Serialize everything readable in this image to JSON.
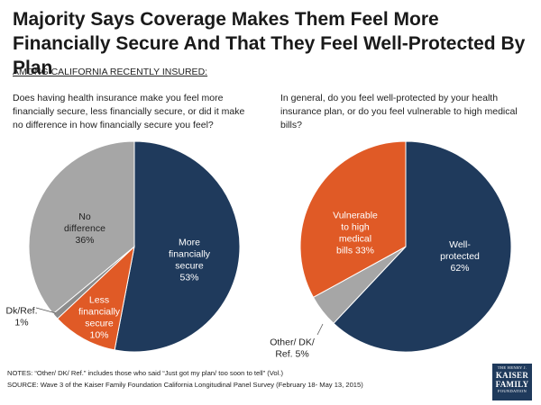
{
  "title": "Majority Says Coverage Makes Them Feel More Financially Secure And That They Feel Well-Protected By Plan",
  "subhead": "AMONG CALIFORNIA RECENTLY INSURED:",
  "chart_data": [
    {
      "type": "pie",
      "question": "Does having health insurance make you feel more financially secure, less financially secure, or did it make no difference in how financially secure you feel?",
      "slices": [
        {
          "name": "More financially secure",
          "label_lines": [
            "More",
            "financially",
            "secure",
            "53%"
          ],
          "value": 53,
          "color": "#1f3a5c",
          "text_color": "#ffffff"
        },
        {
          "name": "Less financially secure",
          "label_lines": [
            "Less",
            "financially",
            "secure",
            "10%"
          ],
          "value": 10,
          "color": "#e05a26",
          "text_color": "#ffffff"
        },
        {
          "name": "Dk/Ref.",
          "label_lines": [
            "Dk/Ref.",
            "1%"
          ],
          "value": 1,
          "color": "#8c8c8c",
          "text_color": "#222222"
        },
        {
          "name": "No difference",
          "label_lines": [
            "No",
            "difference",
            "36%"
          ],
          "value": 36,
          "color": "#a6a6a6",
          "text_color": "#222222"
        }
      ]
    },
    {
      "type": "pie",
      "question": "In general, do you feel well-protected by your health insurance plan, or do you feel vulnerable to high medical bills?",
      "slices": [
        {
          "name": "Well-protected",
          "label_lines": [
            "Well-",
            "protected",
            "62%"
          ],
          "value": 62,
          "color": "#1f3a5c",
          "text_color": "#ffffff"
        },
        {
          "name": "Other/ DK/ Ref.",
          "label_lines": [
            "Other/ DK/",
            "Ref.  5%"
          ],
          "value": 5,
          "color": "#a6a6a6",
          "text_color": "#222222"
        },
        {
          "name": "Vulnerable to high medical bills",
          "label_lines": [
            "Vulnerable",
            "to high",
            "medical",
            "bills 33%"
          ],
          "value": 33,
          "color": "#e05a26",
          "text_color": "#ffffff"
        }
      ]
    }
  ],
  "notes": "NOTES: “Other/ DK/ Ref.” includes those who said “Just got my plan/ too soon to tell” (Vol.)",
  "source": "SOURCE: Wave 3 of the Kaiser Family Foundation California Longitudinal Panel Survey (February 18- May 13, 2015)",
  "logo": {
    "line1": "THE HENRY J.",
    "line2": "KAISER",
    "line3": "FAMILY",
    "line4": "FOUNDATION"
  }
}
